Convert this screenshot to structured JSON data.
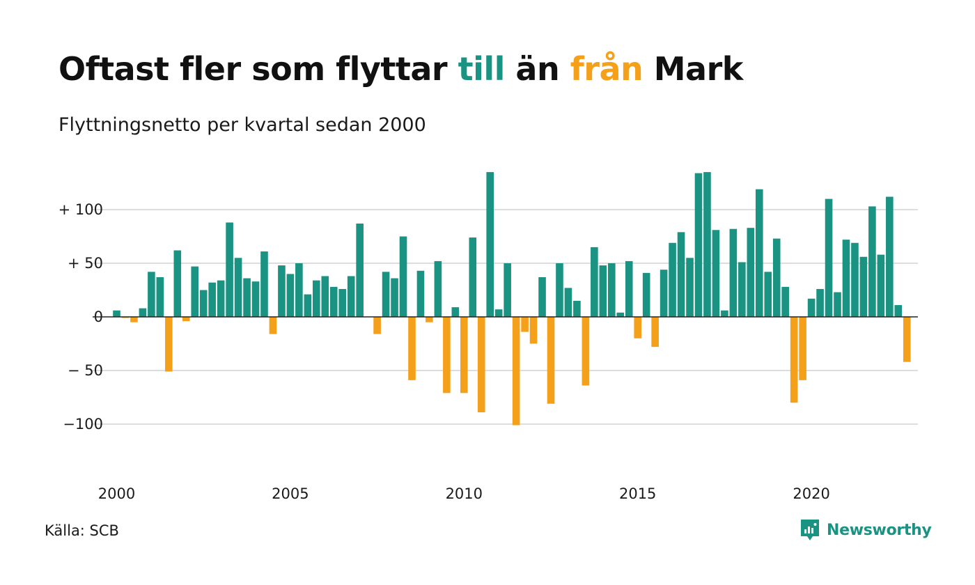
{
  "title": {
    "part1": "Oftast fler som flyttar ",
    "pos_word": "till",
    "part2": " än ",
    "neg_word": "från",
    "part3": " Mark"
  },
  "subtitle": "Flyttningsnetto per kvartal sedan 2000",
  "source": "Källa: SCB",
  "brand": "Newsworthy",
  "colors": {
    "positive": "#1a9383",
    "negative": "#f5a01a",
    "grid": "#dddddd",
    "zero_line": "#222222"
  },
  "chart_data": {
    "type": "bar",
    "title": "Oftast fler som flyttar till än från Mark",
    "subtitle": "Flyttningsnetto per kvartal sedan 2000",
    "ylim": [
      -125,
      135
    ],
    "y_ticks": [
      {
        "value": 100,
        "label": "+ 100"
      },
      {
        "value": 50,
        "label": "+  50"
      },
      {
        "value": 0,
        "label": "0"
      },
      {
        "value": -50,
        "label": "− 50"
      },
      {
        "value": -100,
        "label": "−100"
      }
    ],
    "x_ticks": [
      {
        "quarter_index": 0,
        "label": "2000"
      },
      {
        "quarter_index": 20,
        "label": "2005"
      },
      {
        "quarter_index": 40,
        "label": "2010"
      },
      {
        "quarter_index": 60,
        "label": "2015"
      },
      {
        "quarter_index": 80,
        "label": "2020"
      }
    ],
    "grid": true,
    "start": "2000 Q1",
    "values": [
      6,
      -1,
      -5,
      8,
      42,
      37,
      -51,
      62,
      -4,
      47,
      25,
      32,
      34,
      88,
      55,
      36,
      33,
      61,
      -16,
      48,
      40,
      50,
      21,
      34,
      38,
      28,
      26,
      38,
      87,
      0,
      -16,
      42,
      36,
      75,
      -59,
      43,
      -5,
      52,
      -71,
      9,
      -71,
      74,
      -89,
      135,
      7,
      50,
      -101,
      -14,
      -25,
      37,
      -81,
      50,
      27,
      15,
      -64,
      65,
      48,
      50,
      4,
      52,
      -20,
      41,
      -28,
      44,
      69,
      79,
      55,
      134,
      135,
      81,
      6,
      82,
      51,
      83,
      119,
      42,
      73,
      28,
      -80,
      -59,
      17,
      26,
      110,
      23,
      72,
      69,
      56,
      103,
      58,
      112,
      11,
      -42
    ]
  }
}
